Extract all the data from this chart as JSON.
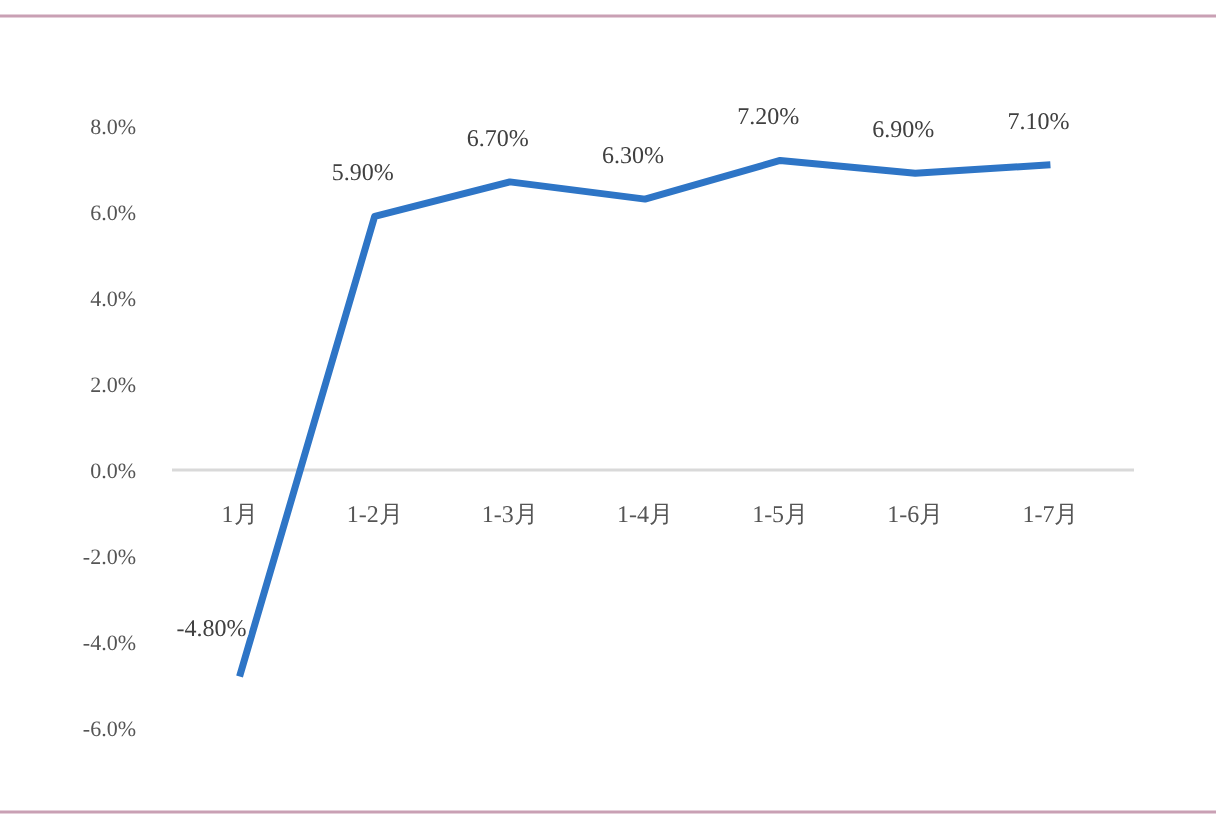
{
  "chart_data": {
    "type": "line",
    "categories": [
      "1月",
      "1-2月",
      "1-3月",
      "1-4月",
      "1-5月",
      "1-6月",
      "1-7月"
    ],
    "series": [
      {
        "color": "#2e75c6",
        "values": [
          -4.8,
          5.9,
          6.7,
          6.3,
          7.2,
          6.9,
          7.1
        ],
        "value_labels": [
          "-4.80%",
          "5.90%",
          "6.70%",
          "6.30%",
          "7.20%",
          "6.90%",
          "7.10%"
        ]
      }
    ],
    "ylim": [
      -6,
      8
    ],
    "yticks": [
      {
        "value": -6,
        "label": "-6.0%"
      },
      {
        "value": -4,
        "label": "-4.0%"
      },
      {
        "value": -2,
        "label": "-2.0%"
      },
      {
        "value": 0,
        "label": "0.0%"
      },
      {
        "value": 2,
        "label": "2.0%"
      },
      {
        "value": 4,
        "label": "4.0%"
      },
      {
        "value": 6,
        "label": "6.0%"
      },
      {
        "value": 8,
        "label": "8.0%"
      }
    ],
    "grid": false,
    "marker": "none",
    "line_style": "solid"
  }
}
